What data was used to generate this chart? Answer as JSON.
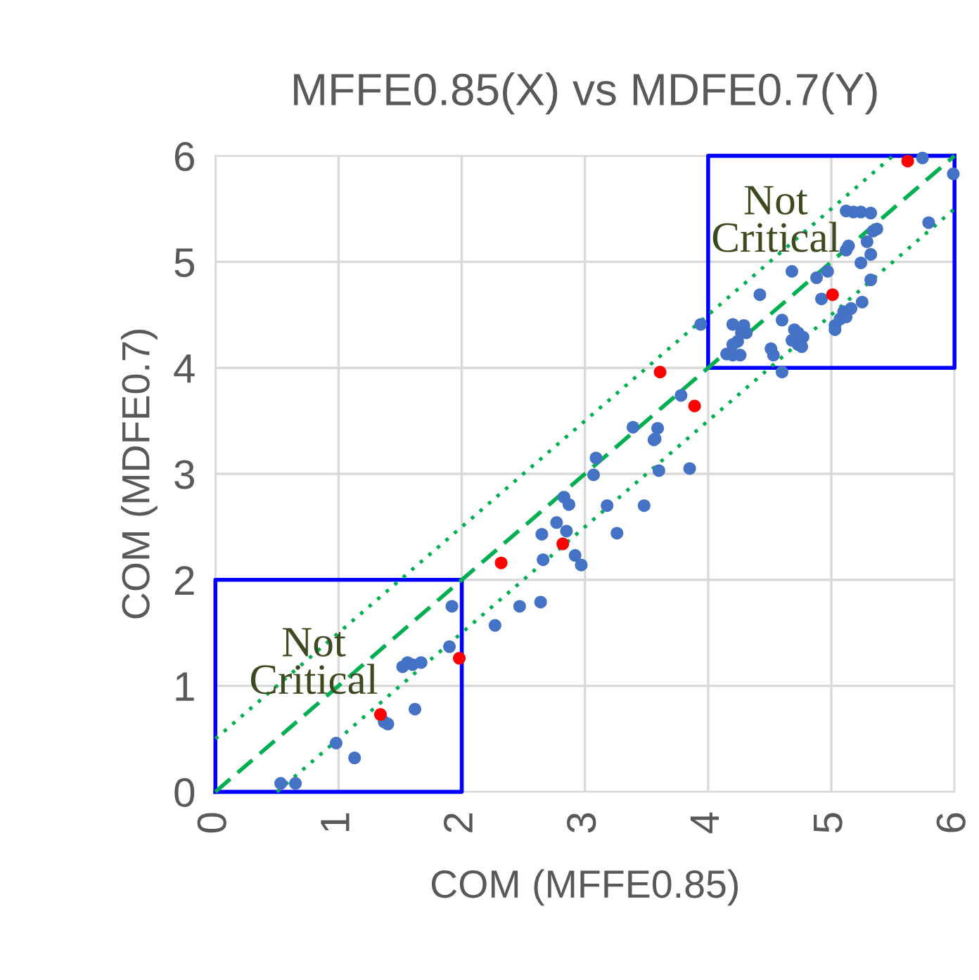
{
  "chart_data": {
    "type": "scatter",
    "title": "MFFE0.85(X) vs MDFE0.7(Y)",
    "xlabel": "COM (MFFE0.85)",
    "ylabel": "COM (MDFE0.7)",
    "xlim": [
      0,
      6
    ],
    "ylim": [
      0,
      6
    ],
    "xticks": [
      0,
      1,
      2,
      3,
      4,
      5,
      6
    ],
    "yticks": [
      0,
      1,
      2,
      3,
      4,
      5,
      6
    ],
    "grid": true,
    "series": [
      {
        "type": "line",
        "color": "#0000ff",
        "line_style": "solid",
        "x": [
          0,
          2,
          2
        ],
        "values": [
          0,
          0,
          2
        ]
      },
      {
        "type": "line",
        "color": "#0000ff",
        "line_style": "solid",
        "x": [
          0,
          0,
          2
        ],
        "values": [
          0,
          2,
          2
        ]
      },
      {
        "type": "line",
        "color": "#0000ff",
        "line_style": "solid",
        "x": [
          4,
          6,
          6
        ],
        "values": [
          4,
          4,
          6
        ]
      },
      {
        "type": "line",
        "color": "#0000ff",
        "line_style": "solid",
        "x": [
          4,
          4,
          6
        ],
        "values": [
          4,
          6,
          6
        ]
      },
      {
        "type": "line",
        "color": "#00b050",
        "line_style": "dashed",
        "x": [
          0,
          6
        ],
        "values": [
          0,
          6
        ]
      },
      {
        "type": "line",
        "color": "#00b050",
        "line_style": "dotted",
        "x": [
          0,
          5.5
        ],
        "values": [
          0.5,
          6
        ]
      },
      {
        "type": "line",
        "color": "#00b050",
        "line_style": "dotted",
        "x": [
          0.5,
          6
        ],
        "values": [
          0,
          5.5
        ]
      },
      {
        "marker": "circle",
        "color": "#4472c4",
        "x": [
          1.92,
          2.47,
          2.27,
          1.9,
          1.52,
          1.56,
          1.6,
          1.67,
          1.62,
          1.37,
          1.4,
          0.98,
          1.13,
          0.53,
          0.65,
          3.94,
          4.15,
          3.78,
          3.39,
          3.59,
          3.56,
          3.57,
          3.09,
          3.07,
          3.6,
          3.85,
          2.83,
          2.87,
          3.18,
          3.48,
          2.77,
          2.85,
          2.65,
          3.26,
          2.66,
          2.92,
          2.97,
          2.64,
          5.74,
          5.99,
          5.79,
          5.12,
          5.18,
          5.24,
          5.32,
          5.34,
          5.37,
          5.29,
          5.12,
          5.14,
          5.32,
          5.24,
          4.68,
          4.97,
          4.88,
          5.32,
          4.42,
          4.92,
          5.25,
          5.1,
          5.16,
          5.07,
          5.12,
          4.6,
          5.03,
          5.03,
          4.2,
          4.29,
          4.31,
          4.27,
          4.24,
          4.2,
          4.2,
          4.26,
          4.7,
          4.73,
          4.77,
          4.68,
          4.73,
          4.76,
          4.51,
          4.53,
          4.6
        ],
        "values": [
          1.75,
          1.75,
          1.57,
          1.37,
          1.18,
          1.22,
          1.2,
          1.22,
          0.78,
          0.66,
          0.64,
          0.46,
          0.32,
          0.08,
          0.08,
          4.41,
          4.13,
          3.74,
          3.44,
          3.43,
          3.32,
          3.33,
          3.15,
          2.99,
          3.03,
          3.05,
          2.78,
          2.71,
          2.7,
          2.7,
          2.54,
          2.46,
          2.43,
          2.44,
          2.19,
          2.23,
          2.14,
          1.79,
          5.98,
          5.83,
          5.37,
          5.48,
          5.47,
          5.47,
          5.46,
          5.29,
          5.31,
          5.19,
          5.11,
          5.15,
          5.07,
          4.99,
          4.91,
          4.91,
          4.85,
          4.83,
          4.69,
          4.65,
          4.62,
          4.53,
          4.56,
          4.46,
          4.48,
          4.45,
          4.4,
          4.36,
          4.41,
          4.4,
          4.33,
          4.33,
          4.25,
          4.22,
          4.12,
          4.12,
          4.36,
          4.33,
          4.29,
          4.26,
          4.22,
          4.2,
          4.18,
          4.12,
          3.96
        ]
      },
      {
        "marker": "circle",
        "color": "#ff0000",
        "x": [
          1.34,
          1.98,
          2.32,
          3.61,
          3.89,
          2.82,
          5.62,
          5.01
        ],
        "values": [
          0.73,
          1.26,
          2.16,
          3.96,
          3.64,
          2.34,
          5.95,
          4.69
        ]
      }
    ],
    "annotations": [
      "Not\nCritical",
      "Not\nCritical"
    ]
  }
}
